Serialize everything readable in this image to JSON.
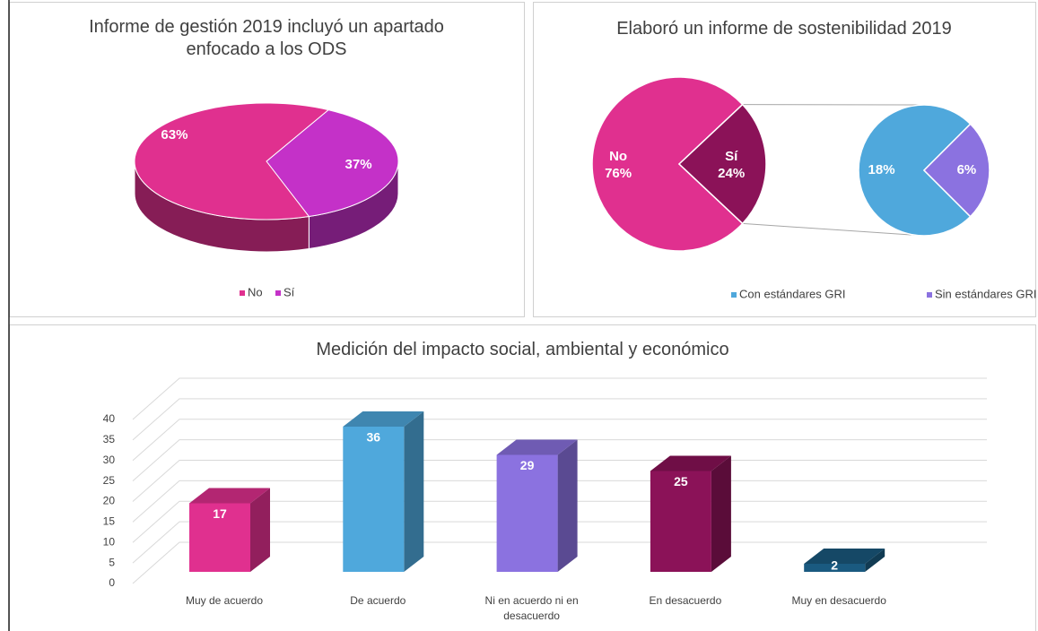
{
  "chart_data": [
    {
      "type": "pie",
      "three_d": true,
      "title": "Informe de gestión 2019 incluyó un apartado enfocado a los ODS",
      "categories": [
        "No",
        "Sí"
      ],
      "values": [
        63,
        37
      ],
      "value_labels": [
        "63%",
        "37%"
      ],
      "colors": [
        "#e0308f",
        "#c431c8"
      ],
      "legend": "bottom"
    },
    {
      "type": "pie_of_pie",
      "title": "Elaboró un informe de sostenibilidad 2019",
      "categories": [
        "No",
        "Sí"
      ],
      "values": [
        76,
        24
      ],
      "value_labels": [
        "76%",
        "24%"
      ],
      "colors": [
        "#e0308f",
        "#8b1258"
      ],
      "breakdown": {
        "categories": [
          "Con estándares GRI",
          "Sin estándares GRI"
        ],
        "values": [
          18,
          6
        ],
        "value_labels": [
          "18%",
          "6%"
        ],
        "colors": [
          "#4fa8dc",
          "#8b72e0"
        ]
      },
      "legend": "bottom"
    },
    {
      "type": "bar",
      "three_d": true,
      "title": "Medición del impacto social, ambiental y económico",
      "categories": [
        "Muy de acuerdo",
        "De acuerdo",
        "Ni en acuerdo ni en desacuerdo",
        "En desacuerdo",
        "Muy en desacuerdo"
      ],
      "values": [
        17,
        36,
        29,
        25,
        2
      ],
      "colors": [
        "#e0308f",
        "#4fa8dc",
        "#8b72e0",
        "#8b1258",
        "#1a5a80"
      ],
      "ylim": [
        0,
        40
      ],
      "yticks": [
        0,
        5,
        10,
        15,
        20,
        25,
        30,
        35,
        40
      ],
      "grid": true
    }
  ]
}
